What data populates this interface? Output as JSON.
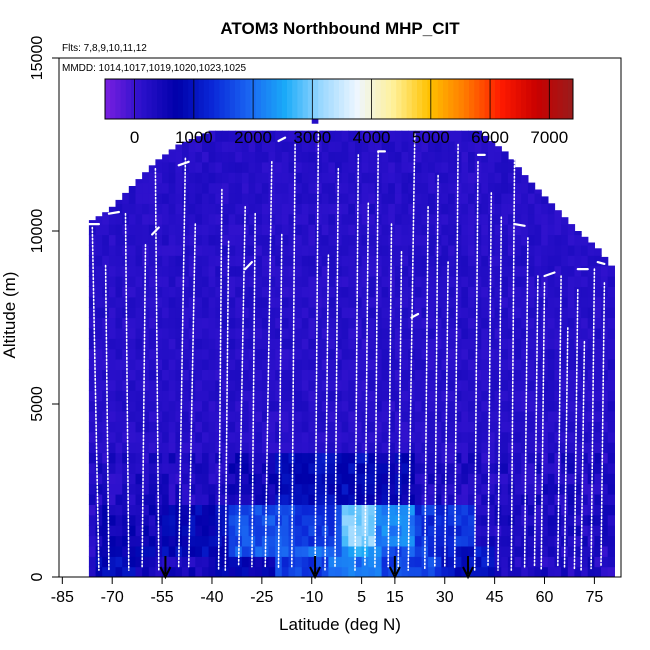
{
  "chart_data": {
    "type": "heatmap",
    "title": "ATOM3 Northbound MHP_CIT",
    "flights_label": "Flts: 7,8,9,10,11,12",
    "dates_label": "MMDD: 1014,1017,1019,1020,1023,1025",
    "xlabel": "Latitude (deg N)",
    "ylabel": "Altitude (m)",
    "xlim": [
      -86,
      83
    ],
    "ylim": [
      0,
      15000
    ],
    "x_ticks": [
      -85,
      -70,
      -55,
      -40,
      -25,
      -10,
      5,
      15,
      30,
      45,
      60,
      75
    ],
    "y_ticks": [
      0,
      5000,
      10000,
      15000
    ],
    "colorbar": {
      "min": -500,
      "max": 7400,
      "ticks": [
        0,
        1000,
        2000,
        3000,
        4000,
        5000,
        6000,
        7000
      ],
      "colors": [
        "#7a1fe0",
        "#2c11cc",
        "#0000aa",
        "#0a28d8",
        "#1a66f2",
        "#1aaaf8",
        "#9ad8ff",
        "#eef6ff",
        "#fff19a",
        "#ffc200",
        "#ff7a00",
        "#ff1a00",
        "#c80000",
        "#9a1c1c"
      ]
    },
    "arrow_latitudes": [
      -54,
      -9,
      15,
      37
    ],
    "value_field": [
      {
        "alt_range": [
          0,
          500
        ],
        "values": [
          {
            "lat": [
              -74,
              -62
            ],
            "v": 900
          },
          {
            "lat": [
              -62,
              -40
            ],
            "v": 400
          },
          {
            "lat": [
              -40,
              -20
            ],
            "v": 700
          },
          {
            "lat": [
              -20,
              -5
            ],
            "v": 1500
          },
          {
            "lat": [
              -5,
              12
            ],
            "v": 2000
          },
          {
            "lat": [
              12,
              30
            ],
            "v": 1600
          },
          {
            "lat": [
              30,
              45
            ],
            "v": 1000
          },
          {
            "lat": [
              45,
              78
            ],
            "v": 300
          }
        ]
      },
      {
        "alt_range": [
          500,
          1000
        ],
        "values": [
          {
            "lat": [
              -75,
              -55
            ],
            "v": 700
          },
          {
            "lat": [
              -55,
              -35
            ],
            "v": 900
          },
          {
            "lat": [
              -35,
              -15
            ],
            "v": 1800
          },
          {
            "lat": [
              -15,
              0
            ],
            "v": 1900
          },
          {
            "lat": [
              0,
              12
            ],
            "v": 2400
          },
          {
            "lat": [
              12,
              25
            ],
            "v": 1700
          },
          {
            "lat": [
              25,
              45
            ],
            "v": 1100
          },
          {
            "lat": [
              45,
              78
            ],
            "v": 300
          }
        ]
      },
      {
        "alt_range": [
          1000,
          2000
        ],
        "values": [
          {
            "lat": [
              -75,
              -55
            ],
            "v": 500
          },
          {
            "lat": [
              -55,
              -35
            ],
            "v": 800
          },
          {
            "lat": [
              -35,
              -15
            ],
            "v": 1700
          },
          {
            "lat": [
              -15,
              0
            ],
            "v": 1500
          },
          {
            "lat": [
              0,
              10
            ],
            "v": 3000
          },
          {
            "lat": [
              10,
              22
            ],
            "v": 2200
          },
          {
            "lat": [
              22,
              40
            ],
            "v": 1400
          },
          {
            "lat": [
              40,
              78
            ],
            "v": 300
          }
        ]
      },
      {
        "alt_range": [
          2000,
          3500
        ],
        "values": [
          {
            "lat": [
              -75,
              -35
            ],
            "v": 300
          },
          {
            "lat": [
              -35,
              -20
            ],
            "v": 500
          },
          {
            "lat": [
              -20,
              10
            ],
            "v": 900
          },
          {
            "lat": [
              10,
              22
            ],
            "v": 700
          },
          {
            "lat": [
              22,
              78
            ],
            "v": 300
          }
        ]
      },
      {
        "alt_range": [
          3500,
          13000
        ],
        "values": [
          {
            "lat": [
              -77,
              80
            ],
            "v": 200
          }
        ]
      }
    ]
  }
}
